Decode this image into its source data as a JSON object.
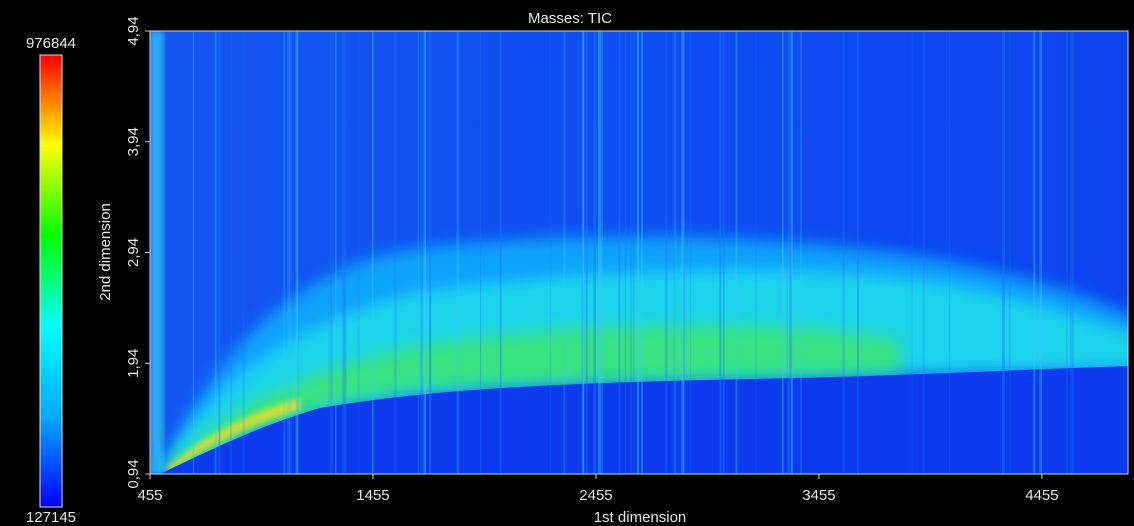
{
  "chart_data": {
    "type": "heatmap",
    "title": "Masses: TIC",
    "x_label": "1st dimension",
    "y_label": "2nd dimension",
    "xlim": [
      455,
      4841
    ],
    "xticks": [
      455,
      1455,
      2455,
      3455,
      4455
    ],
    "ylim": [
      0.94,
      4.94
    ],
    "yticks": [
      {
        "value": 0.94,
        "label": "0,94"
      },
      {
        "value": 1.94,
        "label": "1,94"
      },
      {
        "value": 2.94,
        "label": "2,94"
      },
      {
        "value": 3.94,
        "label": "3,94"
      },
      {
        "value": 4.94,
        "label": "4,94"
      }
    ],
    "colorbar": {
      "min": 127145,
      "max": 976844,
      "colors": [
        "#0000ff",
        "#00aaff",
        "#00ffff",
        "#00ff00",
        "#ffff00",
        "#ff0000"
      ]
    }
  }
}
